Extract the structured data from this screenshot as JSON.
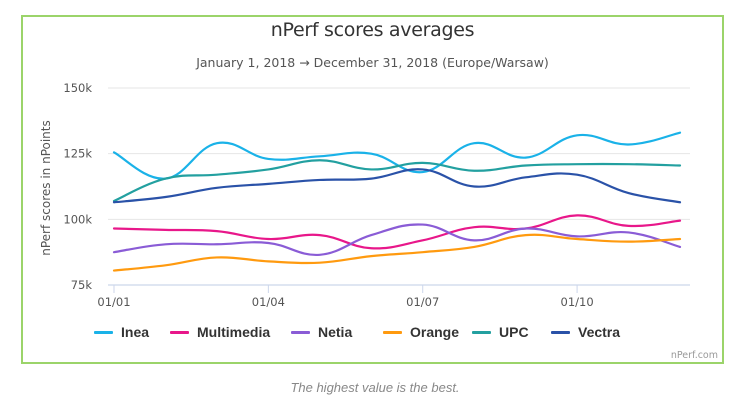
{
  "chart_data": {
    "type": "line",
    "title": "nPerf scores averages",
    "subtitle": "January 1, 2018 → December 31, 2018 (Europe/Warsaw)",
    "xlabel": "",
    "ylabel": "nPerf scores in nPoints",
    "x": [
      "2018-01",
      "2018-02",
      "2018-03",
      "2018-04",
      "2018-05",
      "2018-06",
      "2018-07",
      "2018-08",
      "2018-09",
      "2018-10",
      "2018-11",
      "2018-12"
    ],
    "x_tick_labels": [
      "01/01",
      "01/04",
      "01/07",
      "01/10"
    ],
    "x_tick_indices": [
      0,
      3,
      6,
      9
    ],
    "y_ticks": [
      75000,
      100000,
      125000,
      150000
    ],
    "y_tick_labels": [
      "75k",
      "100k",
      "125k",
      "150k"
    ],
    "ylim": [
      75000,
      150000
    ],
    "grid": true,
    "legend_position": "bottom",
    "series": [
      {
        "name": "Inea",
        "color": "#1ab2e8",
        "values": [
          125500,
          115500,
          129000,
          123000,
          124000,
          125000,
          118000,
          129000,
          123500,
          132000,
          128500,
          133000
        ]
      },
      {
        "name": "Multimedia",
        "color": "#e8178a",
        "values": [
          96500,
          96000,
          95500,
          92500,
          94000,
          89000,
          92000,
          97000,
          96500,
          101500,
          97500,
          99500
        ]
      },
      {
        "name": "Netia",
        "color": "#8a5cd6",
        "values": [
          87500,
          90500,
          90500,
          91000,
          86500,
          94000,
          98000,
          92000,
          96500,
          93500,
          95000,
          89500
        ]
      },
      {
        "name": "Orange",
        "color": "#ff9a0f",
        "values": [
          80500,
          82500,
          85500,
          84000,
          83500,
          86000,
          87500,
          89500,
          94000,
          92500,
          91500,
          92500
        ]
      },
      {
        "name": "UPC",
        "color": "#23a0a0",
        "values": [
          107000,
          115500,
          117000,
          119000,
          122500,
          119000,
          121500,
          118500,
          120500,
          121000,
          121000,
          120500
        ]
      },
      {
        "name": "Vectra",
        "color": "#2a52a8",
        "values": [
          106500,
          108500,
          112000,
          113500,
          115000,
          115500,
          119000,
          112500,
          116000,
          117000,
          110000,
          106500
        ]
      }
    ]
  },
  "credit": "nPerf.com",
  "footnote": "The highest value is the best."
}
